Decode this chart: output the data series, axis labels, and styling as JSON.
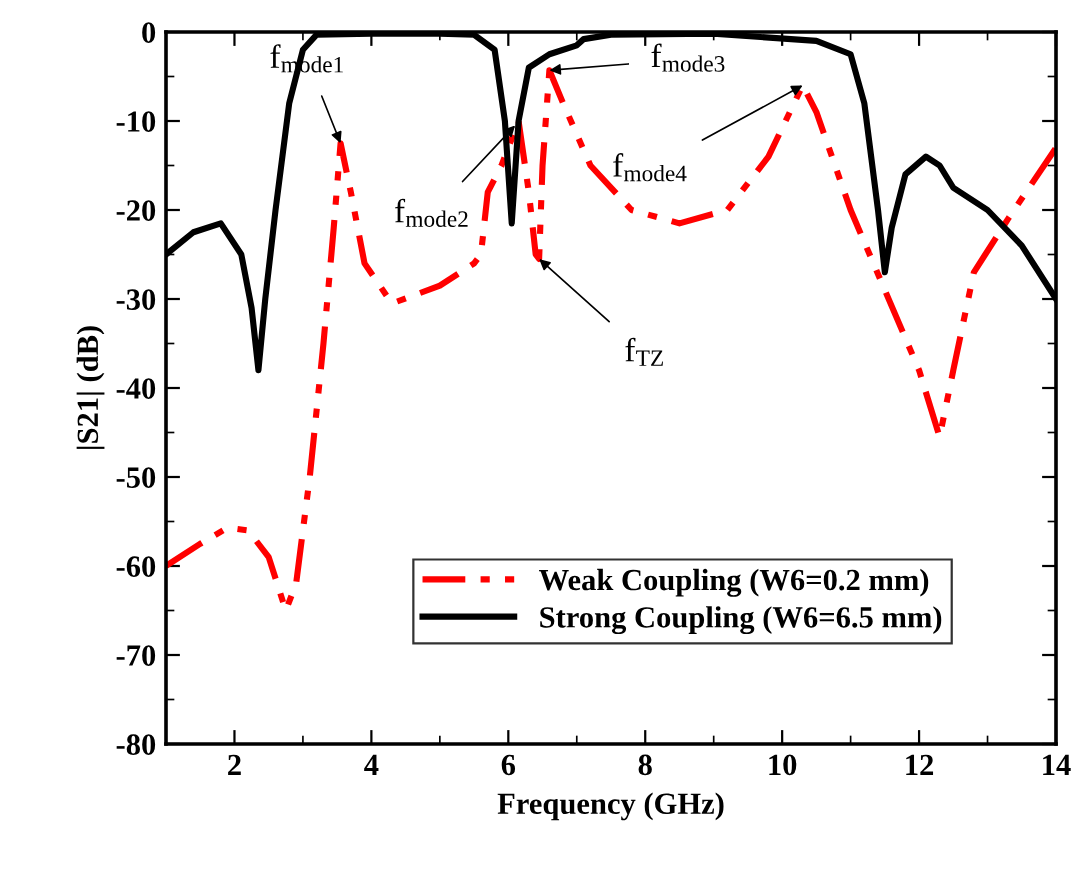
{
  "chart_data": {
    "type": "line",
    "xlabel": "Frequency (GHz)",
    "ylabel": "|S21| (dB)",
    "xlim": [
      1,
      14
    ],
    "xticks": [
      2,
      4,
      6,
      8,
      10,
      12,
      14
    ],
    "ylim": [
      -80,
      0
    ],
    "yticks": [
      -80,
      -70,
      -60,
      -50,
      -40,
      -30,
      -20,
      -10,
      0
    ],
    "grid": false,
    "legend": "bottom right",
    "marker": "none",
    "series": [
      {
        "name": "Weak Coupling (W6=0.2 mm)",
        "color": "#ff0000",
        "line_style": "dashed",
        "x": [
          1,
          1.5,
          1.9,
          2.2,
          2.5,
          2.75,
          2.9,
          3.1,
          3.3,
          3.45,
          3.55,
          3.7,
          3.9,
          4.3,
          5.0,
          5.5,
          5.6,
          5.7,
          5.9,
          6.15,
          6.3,
          6.4,
          6.45,
          6.5,
          6.6,
          6.8,
          7.2,
          7.8,
          8.5,
          9.2,
          9.8,
          10.3,
          10.5,
          11.0,
          11.5,
          12.0,
          12.3,
          12.5,
          12.8,
          13.3,
          14
        ],
        "values": [
          -60,
          -57.5,
          -55.7,
          -56,
          -59,
          -65,
          -62,
          -50,
          -35,
          -22,
          -12.5,
          -18,
          -26,
          -30.5,
          -28.5,
          -26,
          -25,
          -18,
          -15,
          -10,
          -18,
          -25,
          -25.5,
          -15,
          -4.3,
          -8,
          -15,
          -20,
          -21.5,
          -20,
          -14,
          -6,
          -9,
          -20,
          -29,
          -38,
          -45.5,
          -38,
          -27,
          -21,
          -13
        ]
      },
      {
        "name": "Strong Coupling (W6=6.5 mm)",
        "color": "#000000",
        "line_style": "solid",
        "x": [
          1,
          1.4,
          1.8,
          2.1,
          2.25,
          2.35,
          2.45,
          2.6,
          2.8,
          3.0,
          3.2,
          4.0,
          5.0,
          5.5,
          5.8,
          5.95,
          6.05,
          6.15,
          6.3,
          6.6,
          7.0,
          7.1,
          7.5,
          9.0,
          10.5,
          11.0,
          11.2,
          11.4,
          11.5,
          11.6,
          11.8,
          12.1,
          12.3,
          12.5,
          13.0,
          13.5,
          14
        ],
        "values": [
          -25,
          -22.5,
          -21.5,
          -25,
          -31,
          -38,
          -30,
          -20,
          -8,
          -2,
          -0.3,
          -0.2,
          -0.2,
          -0.3,
          -2,
          -10,
          -21.5,
          -10,
          -4,
          -2.5,
          -1.5,
          -0.8,
          -0.3,
          -0.2,
          -1,
          -2.5,
          -8,
          -20,
          -27,
          -22,
          -16,
          -14,
          -15,
          -17.5,
          -20,
          -24,
          -30
        ]
      }
    ],
    "annotations": [
      {
        "text": "f$_{mode1}$",
        "x": 3.55,
        "y": -12.5
      },
      {
        "text": "f$_{mode2}$",
        "x": 6.1,
        "y": -10.5
      },
      {
        "text": "f$_{mode3}$",
        "x": 6.6,
        "y": -4.3
      },
      {
        "text": "f$_{mode4}$",
        "x": 10.3,
        "y": -6
      },
      {
        "text": "f$_{TZ}$",
        "x": 6.45,
        "y": -25.5
      }
    ]
  }
}
